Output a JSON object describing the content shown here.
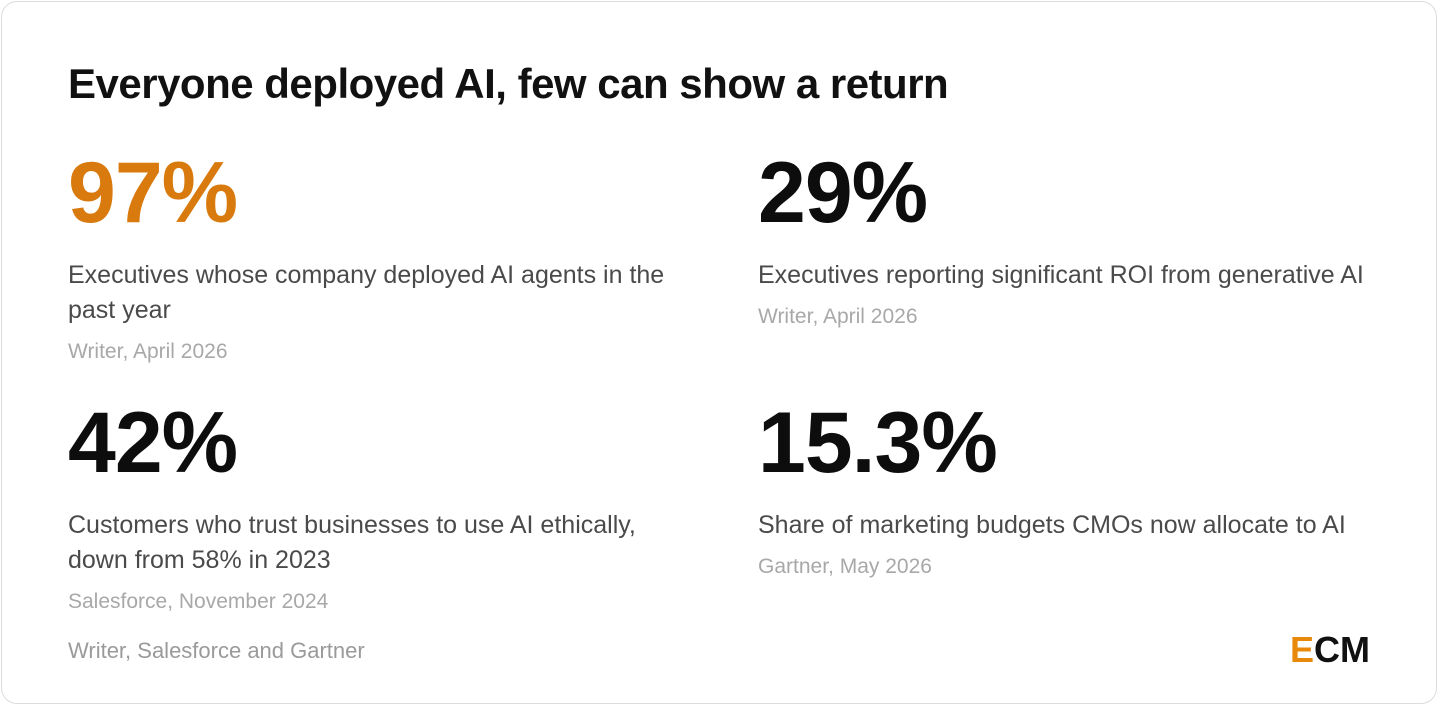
{
  "title": "Everyone deployed AI, few can show a return",
  "stats": [
    {
      "value": "97%",
      "description": "Executives whose company deployed AI agents in the past year",
      "source": "Writer, April 2026",
      "highlighted": true
    },
    {
      "value": "29%",
      "description": "Executives reporting significant ROI from generative AI",
      "source": "Writer, April 2026",
      "highlighted": false
    },
    {
      "value": "42%",
      "description": "Customers who trust businesses to use AI ethically, down from 58% in 2023",
      "source": "Salesforce, November 2024",
      "highlighted": false
    },
    {
      "value": "15.3%",
      "description": "Share of marketing budgets CMOs now allocate to AI",
      "source": "Gartner, May 2026",
      "highlighted": false
    }
  ],
  "footer": {
    "sources": "Writer, Salesforce and Gartner"
  },
  "logo": {
    "first_letter": "E",
    "rest": "CM"
  },
  "colors": {
    "accent": "#d97a0e",
    "logo_accent": "#e8890c",
    "text_primary": "#0d0d0d",
    "text_secondary": "#4a4a4a",
    "text_muted": "#a8a8a8"
  }
}
